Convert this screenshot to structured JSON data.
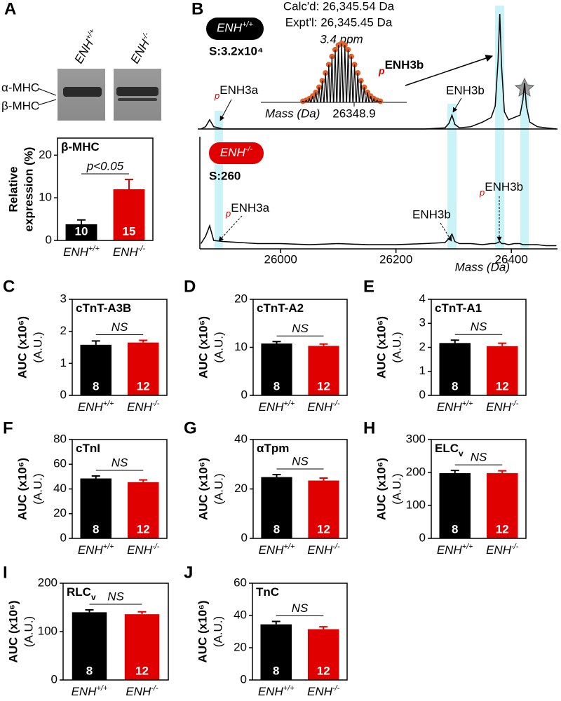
{
  "blot": {
    "lanes": [
      {
        "name": "ENH",
        "superscript": "+/+"
      },
      {
        "name": "ENH",
        "superscript": "-/-"
      }
    ],
    "bands": [
      "α-MHC",
      "β-MHC"
    ]
  },
  "chart_data": [
    {
      "panel": "A",
      "type": "bar",
      "title": "β-MHC",
      "ylabel": [
        "Relative",
        "expression (%)"
      ],
      "categories": [
        {
          "name": "ENH",
          "superscript": "+/+"
        },
        {
          "name": "ENH",
          "superscript": "-/-"
        }
      ],
      "values": [
        3.8,
        12.0
      ],
      "errors": [
        1.0,
        2.3
      ],
      "n": [
        10,
        15
      ],
      "colors": [
        "#000000",
        "#e00000"
      ],
      "annotation": "p<0.05",
      "ylim": [
        0,
        24
      ],
      "yticks": [
        0,
        10,
        20
      ]
    },
    {
      "panel": "B",
      "type": "line",
      "xlabel": "Mass (Da)",
      "xlim": [
        25860,
        26480
      ],
      "xticks": [
        26000,
        26200,
        26400
      ],
      "x": [
        25862,
        25870,
        25877,
        25884,
        25900,
        25930,
        25960,
        26000,
        26050,
        26100,
        26150,
        26200,
        26250,
        26285,
        26292,
        26297,
        26302,
        26310,
        26330,
        26350,
        26365,
        26372,
        26377,
        26380,
        26383,
        26388,
        26395,
        26405,
        26415,
        26420,
        26423,
        26426,
        26432,
        26445,
        26460,
        26478
      ],
      "series": [
        {
          "name": "ENH",
          "superscript": "+/+",
          "signal": "S:3.2x10⁴",
          "color": "#000000",
          "badge_color": "#000000",
          "values": [
            0,
            2,
            8,
            2,
            0,
            0,
            0,
            0,
            0,
            0,
            0,
            0,
            0,
            1,
            5,
            12,
            4,
            1,
            2,
            6,
            10,
            20,
            60,
            100,
            55,
            15,
            8,
            10,
            12,
            25,
            40,
            20,
            6,
            2,
            1,
            0
          ]
        },
        {
          "name": "ENH",
          "superscript": "-/-",
          "signal": "S:260",
          "color": "#000000",
          "badge_color": "#e00000",
          "values": [
            3,
            10,
            20,
            6,
            5,
            4,
            3,
            3,
            2,
            3,
            2,
            2,
            3,
            4,
            8,
            12,
            5,
            3,
            3,
            2,
            3,
            3,
            4,
            5,
            3,
            3,
            2,
            3,
            3,
            2,
            2,
            2,
            2,
            2,
            1,
            1
          ]
        }
      ],
      "annotations": [
        {
          "prefix": "p",
          "text": "ENH3a"
        },
        {
          "text": "ENH3b"
        },
        {
          "prefix": "p",
          "text": "ENH3a"
        },
        {
          "text": "ENH3b"
        },
        {
          "prefix": "p",
          "text": "ENH3b"
        }
      ],
      "inset": {
        "lines": [
          "Calc'd: 26,345.54 Da",
          "Expt'l: 26,345.45 Da",
          "3.4 ppm"
        ],
        "label": {
          "prefix": "p",
          "text": "ENH3b"
        },
        "xlabel": "Mass (Da)",
        "xticks": [
          26348.9
        ],
        "dot_color": "#e0642a"
      }
    },
    {
      "panel": "C",
      "type": "bar",
      "title": "cTnT-A3B",
      "ylabel": [
        "AUC (x10⁶)",
        "(A.U.)"
      ],
      "categories": [
        {
          "name": "ENH",
          "superscript": "+/+"
        },
        {
          "name": "ENH",
          "superscript": "-/-"
        }
      ],
      "values": [
        1.58,
        1.65
      ],
      "errors": [
        0.12,
        0.07
      ],
      "n": [
        8,
        12
      ],
      "colors": [
        "#000000",
        "#e00000"
      ],
      "annotation": "NS",
      "ylim": [
        0,
        3
      ],
      "yticks": [
        0,
        1,
        2,
        3
      ]
    },
    {
      "panel": "D",
      "type": "bar",
      "title": "cTnT-A2",
      "ylabel": [
        "AUC (x10⁶)",
        "(A.U.)"
      ],
      "categories": [
        {
          "name": "ENH",
          "superscript": "+/+"
        },
        {
          "name": "ENH",
          "superscript": "-/-"
        }
      ],
      "values": [
        10.8,
        10.3
      ],
      "errors": [
        0.4,
        0.4
      ],
      "n": [
        8,
        12
      ],
      "colors": [
        "#000000",
        "#e00000"
      ],
      "annotation": "NS",
      "ylim": [
        0,
        20
      ],
      "yticks": [
        0,
        10,
        20
      ]
    },
    {
      "panel": "E",
      "type": "bar",
      "title": "cTnT-A1",
      "ylabel": [
        "AUC (x10⁶)",
        "(A.U.)"
      ],
      "categories": [
        {
          "name": "ENH",
          "superscript": "+/+"
        },
        {
          "name": "ENH",
          "superscript": "-/-"
        }
      ],
      "values": [
        2.18,
        2.05
      ],
      "errors": [
        0.12,
        0.12
      ],
      "n": [
        8,
        12
      ],
      "colors": [
        "#000000",
        "#e00000"
      ],
      "annotation": "NS",
      "ylim": [
        0,
        4
      ],
      "yticks": [
        0,
        1,
        2,
        3,
        4
      ]
    },
    {
      "panel": "F",
      "type": "bar",
      "title": "cTnI",
      "ylabel": [
        "AUC (x10⁶)",
        "(A.U.)"
      ],
      "categories": [
        {
          "name": "ENH",
          "superscript": "+/+"
        },
        {
          "name": "ENH",
          "superscript": "-/-"
        }
      ],
      "values": [
        48.5,
        45.5
      ],
      "errors": [
        2.0,
        1.8
      ],
      "n": [
        8,
        12
      ],
      "colors": [
        "#000000",
        "#e00000"
      ],
      "annotation": "NS",
      "ylim": [
        0,
        80
      ],
      "yticks": [
        0,
        20,
        40,
        60,
        80
      ]
    },
    {
      "panel": "G",
      "type": "bar",
      "title": "αTpm",
      "ylabel": [
        "AUC (x10⁶)",
        "(A.U.)"
      ],
      "categories": [
        {
          "name": "ENH",
          "superscript": "+/+"
        },
        {
          "name": "ENH",
          "superscript": "-/-"
        }
      ],
      "values": [
        24.8,
        23.4
      ],
      "errors": [
        1.0,
        1.0
      ],
      "n": [
        8,
        12
      ],
      "colors": [
        "#000000",
        "#e00000"
      ],
      "annotation": "NS",
      "ylim": [
        0,
        40
      ],
      "yticks": [
        0,
        20,
        40
      ]
    },
    {
      "panel": "H",
      "type": "bar",
      "title": "ELC",
      "title_subscript": "v",
      "ylabel": [
        "AUC (x10⁶)",
        "(A.U.)"
      ],
      "categories": [
        {
          "name": "ENH",
          "superscript": "+/+"
        },
        {
          "name": "ENH",
          "superscript": "-/-"
        }
      ],
      "values": [
        198,
        198
      ],
      "errors": [
        8,
        7
      ],
      "n": [
        8,
        12
      ],
      "colors": [
        "#000000",
        "#e00000"
      ],
      "annotation": "NS",
      "ylim": [
        0,
        300
      ],
      "yticks": [
        0,
        100,
        200,
        300
      ]
    },
    {
      "panel": "I",
      "type": "bar",
      "title": "RLC",
      "title_subscript": "v",
      "ylabel": [
        "AUC (x10⁶)",
        "(A.U.)"
      ],
      "categories": [
        {
          "name": "ENH",
          "superscript": "+/+"
        },
        {
          "name": "ENH",
          "superscript": "-/-"
        }
      ],
      "values": [
        140,
        136
      ],
      "errors": [
        5,
        5
      ],
      "n": [
        8,
        12
      ],
      "colors": [
        "#000000",
        "#e00000"
      ],
      "annotation": "NS",
      "ylim": [
        0,
        200
      ],
      "yticks": [
        0,
        100,
        200
      ]
    },
    {
      "panel": "J",
      "type": "bar",
      "title": "TnC",
      "ylabel": [
        "AUC (x10⁶)",
        "(A.U.)"
      ],
      "categories": [
        {
          "name": "ENH",
          "superscript": "+/+"
        },
        {
          "name": "ENH",
          "superscript": "-/-"
        }
      ],
      "values": [
        34.5,
        31.5
      ],
      "errors": [
        1.8,
        1.5
      ],
      "n": [
        8,
        12
      ],
      "colors": [
        "#000000",
        "#e00000"
      ],
      "annotation": "NS",
      "ylim": [
        0,
        60
      ],
      "yticks": [
        0,
        20,
        40,
        60
      ]
    }
  ]
}
